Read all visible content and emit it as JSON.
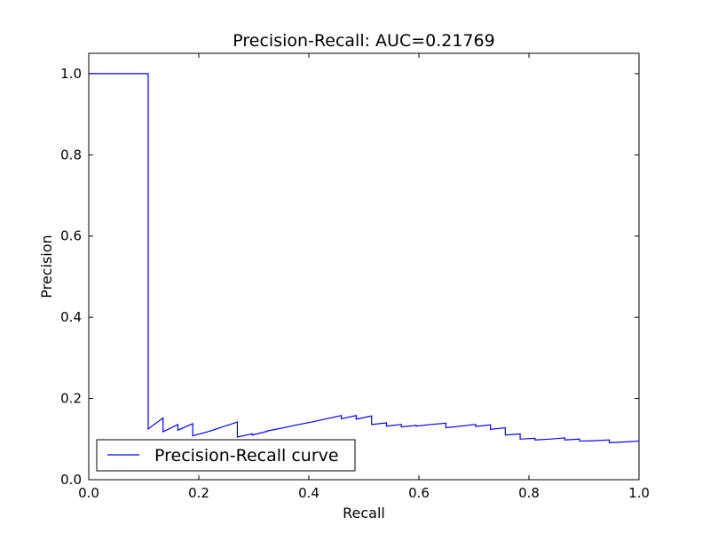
{
  "chart_data": {
    "type": "line",
    "title": "Precision-Recall: AUC=0.21769",
    "xlabel": "Recall",
    "ylabel": "Precision",
    "xlim": [
      0.0,
      1.0
    ],
    "ylim": [
      0.0,
      1.05
    ],
    "xticks": [
      0.0,
      0.2,
      0.4,
      0.6,
      0.8,
      1.0
    ],
    "xtick_labels": [
      "0.0",
      "0.2",
      "0.4",
      "0.6",
      "0.8",
      "1.0"
    ],
    "yticks": [
      0.0,
      0.2,
      0.4,
      0.6,
      0.8,
      1.0
    ],
    "ytick_labels": [
      "0.0",
      "0.2",
      "0.4",
      "0.6",
      "0.8",
      "1.0"
    ],
    "grid": false,
    "legend": {
      "position": "lower-left",
      "entries": [
        "Precision-Recall curve"
      ]
    },
    "series": [
      {
        "name": "Precision-Recall curve",
        "color": "#0000ff",
        "x": [
          0.0,
          0.108,
          0.108,
          0.135,
          0.135,
          0.162,
          0.162,
          0.189,
          0.189,
          0.216,
          0.23,
          0.243,
          0.257,
          0.27,
          0.27,
          0.297,
          0.297,
          0.324,
          0.324,
          0.351,
          0.378,
          0.405,
          0.432,
          0.459,
          0.459,
          0.486,
          0.486,
          0.514,
          0.514,
          0.541,
          0.541,
          0.568,
          0.568,
          0.595,
          0.595,
          0.622,
          0.649,
          0.649,
          0.676,
          0.703,
          0.703,
          0.73,
          0.73,
          0.757,
          0.757,
          0.784,
          0.784,
          0.811,
          0.811,
          0.838,
          0.865,
          0.865,
          0.892,
          0.892,
          0.919,
          0.946,
          0.946,
          0.973,
          1.0
        ],
        "y": [
          1.0,
          1.0,
          0.125,
          0.152,
          0.118,
          0.136,
          0.122,
          0.138,
          0.108,
          0.118,
          0.124,
          0.13,
          0.136,
          0.142,
          0.105,
          0.113,
          0.11,
          0.119,
          0.12,
          0.127,
          0.135,
          0.142,
          0.15,
          0.158,
          0.15,
          0.158,
          0.149,
          0.157,
          0.136,
          0.14,
          0.132,
          0.136,
          0.13,
          0.134,
          0.132,
          0.136,
          0.139,
          0.128,
          0.132,
          0.136,
          0.131,
          0.135,
          0.124,
          0.128,
          0.11,
          0.113,
          0.1,
          0.102,
          0.098,
          0.1,
          0.103,
          0.098,
          0.1,
          0.095,
          0.096,
          0.098,
          0.091,
          0.093,
          0.095
        ]
      }
    ]
  }
}
